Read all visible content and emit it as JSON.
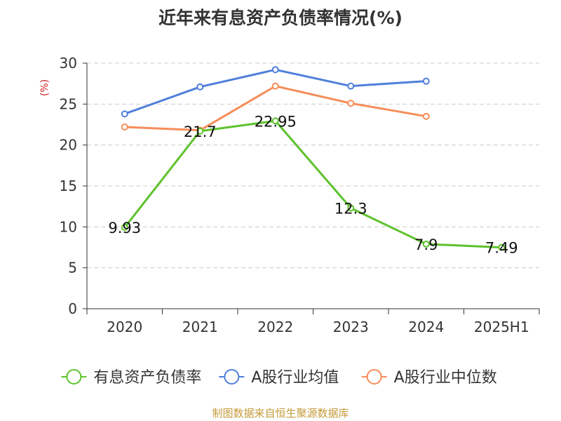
{
  "chart_data": {
    "type": "line",
    "title": "近年来有息资产负债率情况(%)",
    "ylabel": "(%)",
    "xlabel": "",
    "categories": [
      "2020",
      "2021",
      "2022",
      "2023",
      "2024",
      "2025H1"
    ],
    "ylim": [
      0,
      30
    ],
    "yticks": [
      0,
      5,
      10,
      15,
      20,
      25,
      30
    ],
    "grid": true,
    "legend_position": "bottom",
    "series": [
      {
        "name": "有息资产负债率",
        "color": "#5ec22d",
        "values": [
          9.93,
          21.7,
          22.95,
          12.3,
          7.9,
          7.49
        ],
        "labels": [
          "9.93",
          "21.7",
          "22.95",
          "12.3",
          "7.9",
          "7.49"
        ],
        "show_labels": true
      },
      {
        "name": "A股行业均值",
        "color": "#4f7fdb",
        "values": [
          23.8,
          27.1,
          29.2,
          27.2,
          27.8,
          null
        ],
        "show_labels": false
      },
      {
        "name": "A股行业中位数",
        "color": "#f78d59",
        "values": [
          22.2,
          21.8,
          27.2,
          25.1,
          23.5,
          null
        ],
        "show_labels": false
      }
    ]
  },
  "footer": {
    "source": "制图数据来自恒生聚源数据库",
    "color": "#c49a3a"
  },
  "colors": {
    "ylabel": "#cc2222",
    "axis": "#333333",
    "grid": "#cccccc",
    "text": "#333333"
  }
}
